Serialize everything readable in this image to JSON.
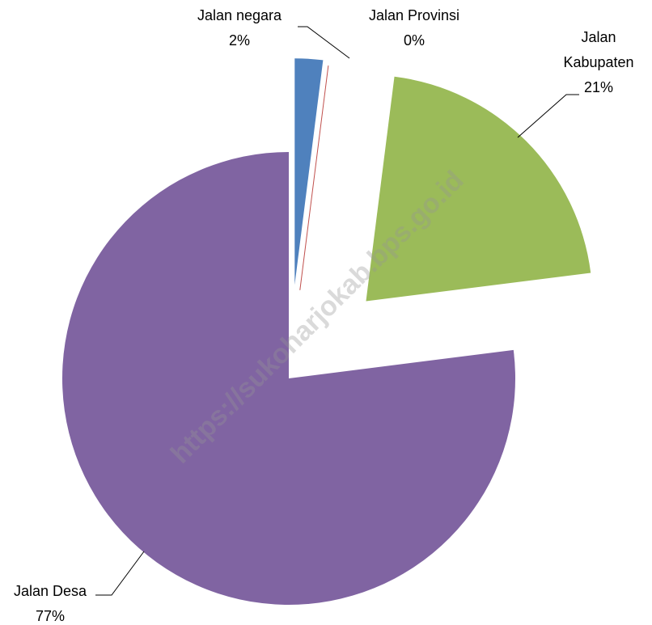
{
  "chart_data": {
    "type": "pie",
    "categories": [
      "Jalan negara",
      "Jalan Provinsi",
      "Jalan Kabupaten",
      "Jalan Desa"
    ],
    "values": [
      2,
      0,
      21,
      77
    ],
    "value_labels": [
      "2%",
      "0%",
      "21%",
      "77%"
    ],
    "colors": [
      "#4f81bd",
      "#c0504d",
      "#9bbb59",
      "#8064a2"
    ],
    "watermark": "https://sukoharjokab.bps.go.id"
  }
}
